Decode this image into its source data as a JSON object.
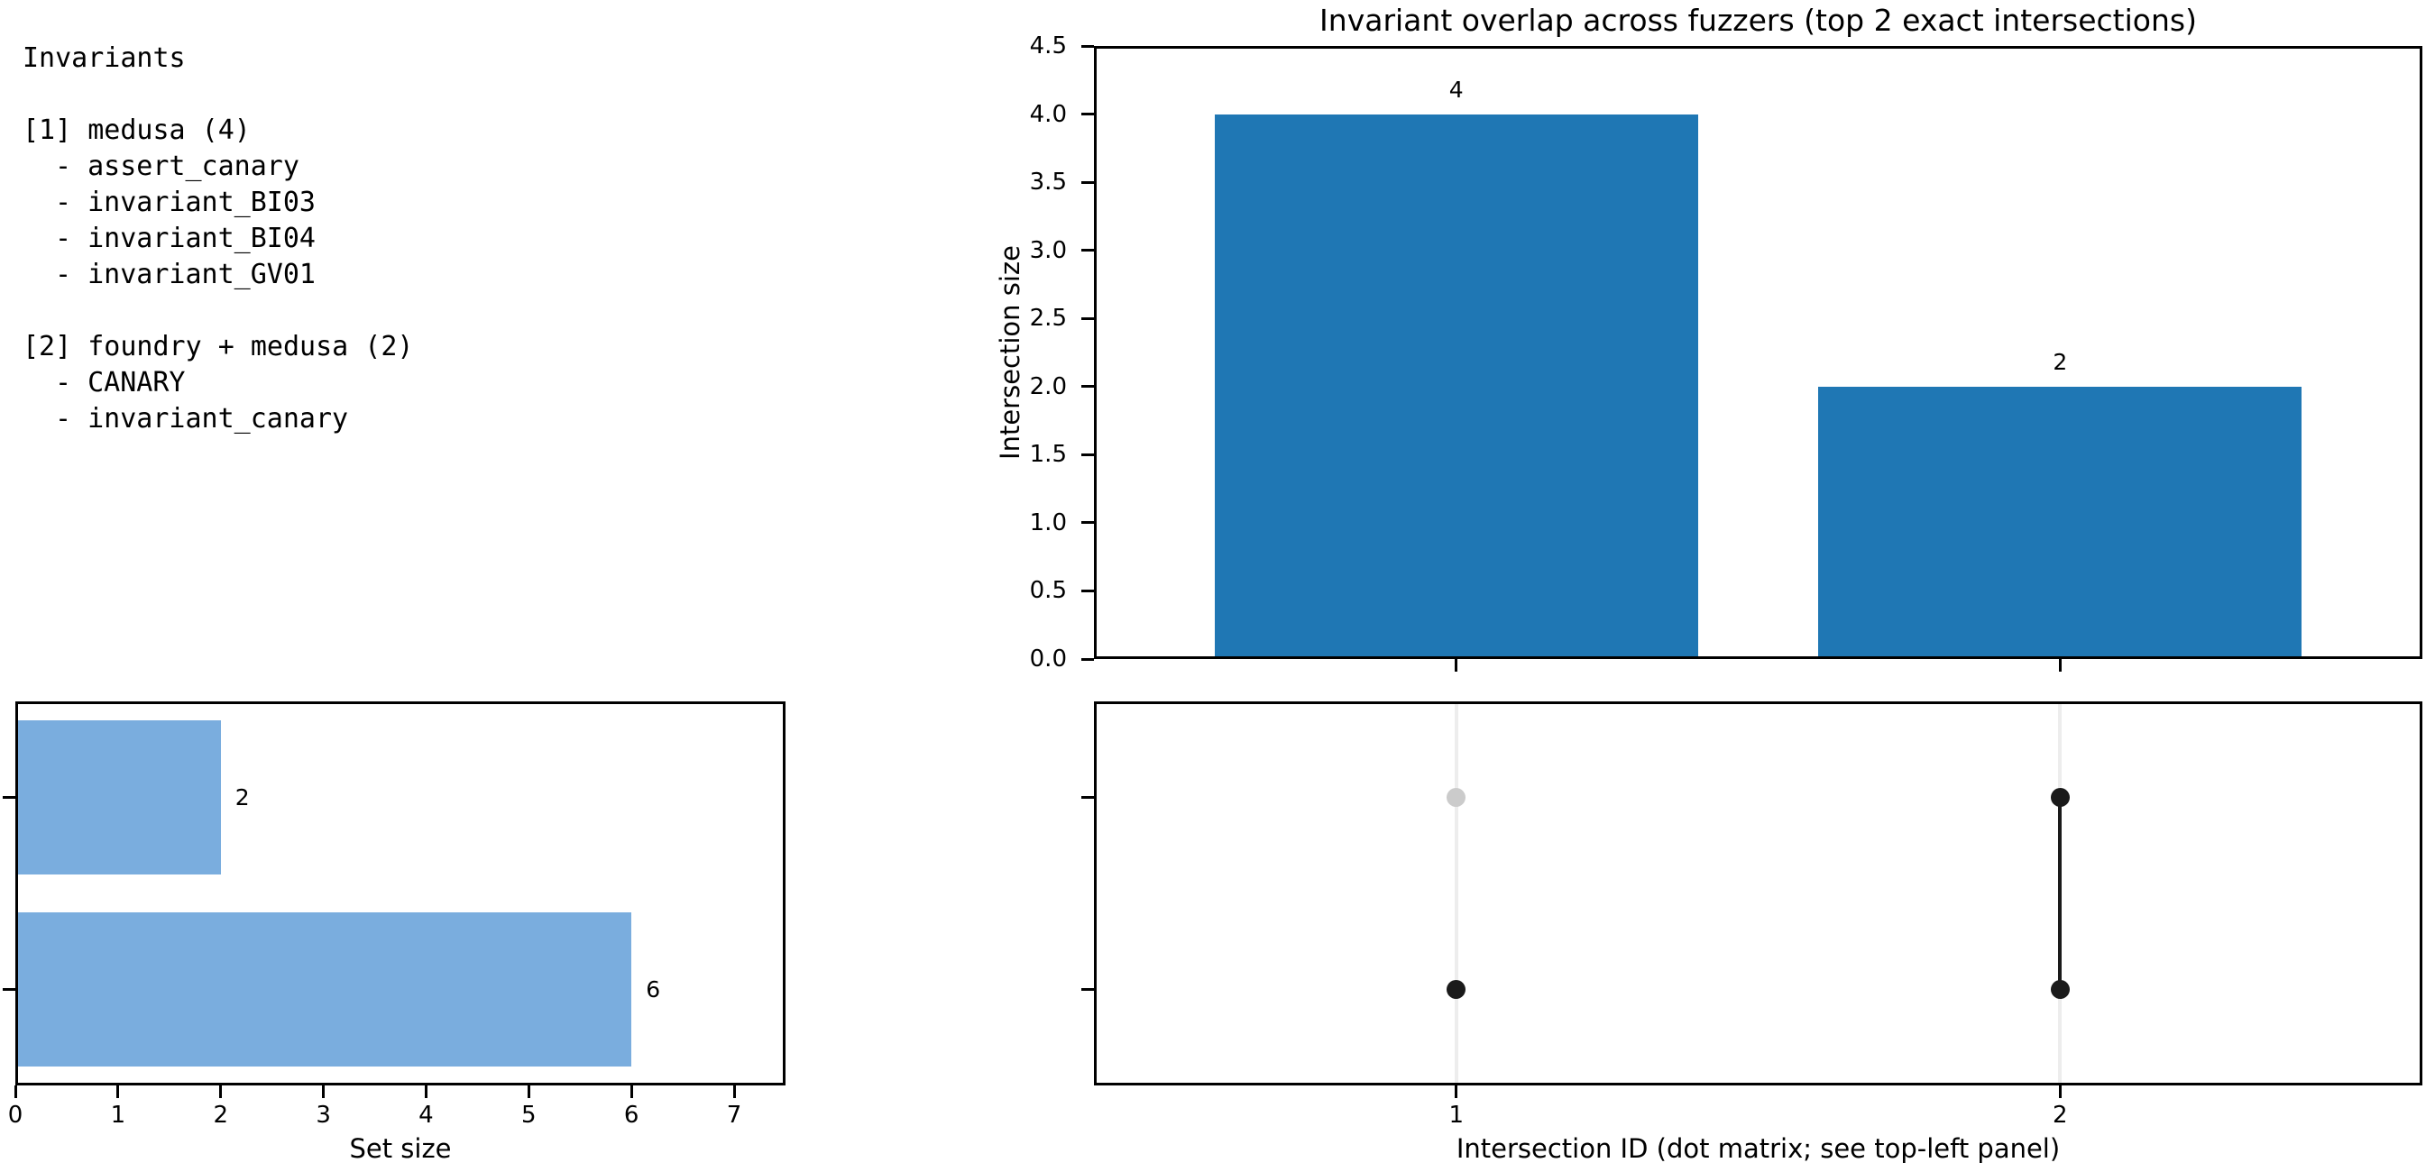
{
  "figure": {
    "background": "#ffffff",
    "text_color": "#000000",
    "spine_color": "#000000"
  },
  "invariants_panel": {
    "title": "Invariants",
    "groups": [
      {
        "header": "[1] medusa (4)",
        "items": [
          "- assert_canary",
          "- invariant_BI03",
          "- invariant_BI04",
          "- invariant_GV01"
        ]
      },
      {
        "header": "[2] foundry + medusa (2)",
        "items": [
          "- CANARY",
          "- invariant_canary"
        ]
      }
    ]
  },
  "chart_data": [
    {
      "type": "bar",
      "title": "Invariant overlap across fuzzers (top 2 exact intersections)",
      "ylabel": "Intersection size",
      "x": [
        1,
        2
      ],
      "values": [
        4,
        2
      ],
      "bar_labels": [
        "4",
        "2"
      ],
      "bar_width": 0.8,
      "bar_color": "#1f77b4",
      "xlim": [
        0.4,
        2.6
      ],
      "ylim": [
        0,
        4.5
      ],
      "ytick_values": [
        0,
        0.5,
        1,
        1.5,
        2,
        2.5,
        3,
        3.5,
        4,
        4.5
      ],
      "ytick_labels": [
        "0.0",
        "0.5",
        "1.0",
        "1.5",
        "2.0",
        "2.5",
        "3.0",
        "3.5",
        "4.0",
        "4.5"
      ],
      "xtick_values": [
        1,
        2
      ],
      "xtick_labels_visible": false,
      "grid": false,
      "legend": "none"
    },
    {
      "type": "bar-horizontal",
      "xlabel": "Set size",
      "rows_top_to_bottom": [
        {
          "value": 2,
          "label": "2"
        },
        {
          "value": 6,
          "label": "6"
        }
      ],
      "bar_height": 0.8,
      "bar_color": "#7aadde",
      "xlim": [
        0,
        7.5
      ],
      "ylim": [
        -0.5,
        1.5
      ],
      "xtick_values": [
        0,
        1,
        2,
        3,
        4,
        5,
        6,
        7
      ],
      "xtick_labels": [
        "0",
        "1",
        "2",
        "3",
        "4",
        "5",
        "6",
        "7"
      ],
      "ytick_labels_visible": false,
      "grid": false,
      "legend": "none"
    },
    {
      "type": "scatter",
      "xlabel": "Intersection ID (dot matrix; see top-left panel)",
      "xlim": [
        0.4,
        2.6
      ],
      "ylim": [
        -0.5,
        1.5
      ],
      "columns": [
        {
          "x": 1,
          "tick_label": "1",
          "active_rows_top_to_bottom": [
            false,
            true
          ]
        },
        {
          "x": 2,
          "tick_label": "2",
          "active_rows_top_to_bottom": [
            true,
            true
          ]
        }
      ],
      "n_rows": 2,
      "active_color": "#1a1a1a",
      "inactive_color": "#cbcbcb",
      "gridline_color": "#ededed",
      "connector_color": "#1a1a1a",
      "grid": "vertical-light",
      "legend": "none"
    }
  ]
}
